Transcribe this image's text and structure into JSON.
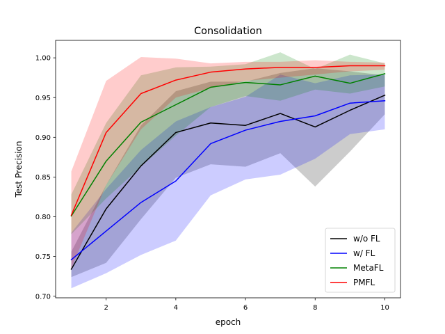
{
  "chart_data": {
    "type": "line",
    "title": "Consolidation",
    "xlabel": "epoch",
    "ylabel": "Test Precision",
    "xlim": [
      0.55,
      10.45
    ],
    "ylim": [
      0.698,
      1.022
    ],
    "xticks": [
      2,
      4,
      6,
      8,
      10
    ],
    "xtick_labels": [
      "2",
      "4",
      "6",
      "8",
      "10"
    ],
    "yticks": [
      0.7,
      0.75,
      0.8,
      0.85,
      0.9,
      0.95,
      1.0
    ],
    "ytick_labels": [
      "0.70",
      "0.75",
      "0.80",
      "0.85",
      "0.90",
      "0.95",
      "1.00"
    ],
    "grid": false,
    "legend_position": "lower-right",
    "x": [
      1,
      2,
      3,
      4,
      5,
      6,
      7,
      8,
      9,
      10
    ],
    "series": [
      {
        "name": "w/o FL",
        "color": "#000000",
        "values": [
          0.734,
          0.81,
          0.864,
          0.906,
          0.918,
          0.915,
          0.93,
          0.913,
          0.934,
          0.953
        ],
        "band_lower": [
          0.724,
          0.742,
          0.797,
          0.849,
          0.866,
          0.863,
          0.88,
          0.838,
          0.882,
          0.929
        ],
        "band_upper": [
          0.756,
          0.84,
          0.915,
          0.958,
          0.97,
          0.97,
          0.981,
          0.987,
          0.983,
          0.978
        ]
      },
      {
        "name": "w/ FL",
        "color": "#0000ff",
        "values": [
          0.746,
          0.782,
          0.818,
          0.845,
          0.892,
          0.909,
          0.92,
          0.927,
          0.943,
          0.946
        ],
        "band_lower": [
          0.71,
          0.729,
          0.752,
          0.77,
          0.827,
          0.847,
          0.853,
          0.873,
          0.904,
          0.91
        ],
        "band_upper": [
          0.78,
          0.835,
          0.884,
          0.92,
          0.938,
          0.951,
          0.979,
          0.968,
          0.978,
          0.979
        ]
      },
      {
        "name": "MetaFL",
        "color": "#008000",
        "values": [
          0.801,
          0.87,
          0.919,
          0.941,
          0.963,
          0.969,
          0.966,
          0.977,
          0.968,
          0.98
        ],
        "band_lower": [
          0.778,
          0.823,
          0.863,
          0.902,
          0.938,
          0.952,
          0.946,
          0.96,
          0.955,
          0.964
        ],
        "band_upper": [
          0.828,
          0.918,
          0.978,
          0.988,
          0.989,
          0.992,
          1.007,
          0.986,
          1.004,
          0.993
        ]
      },
      {
        "name": "PMFL",
        "color": "#ff0000",
        "values": [
          0.802,
          0.906,
          0.955,
          0.972,
          0.982,
          0.986,
          0.988,
          0.988,
          0.99,
          0.99
        ],
        "band_lower": [
          0.735,
          0.84,
          0.91,
          0.95,
          0.962,
          0.971,
          0.975,
          0.979,
          0.983,
          0.985
        ],
        "band_upper": [
          0.857,
          0.971,
          1.001,
          0.999,
          0.993,
          0.995,
          0.995,
          0.997,
          0.995,
          0.994
        ]
      }
    ]
  }
}
